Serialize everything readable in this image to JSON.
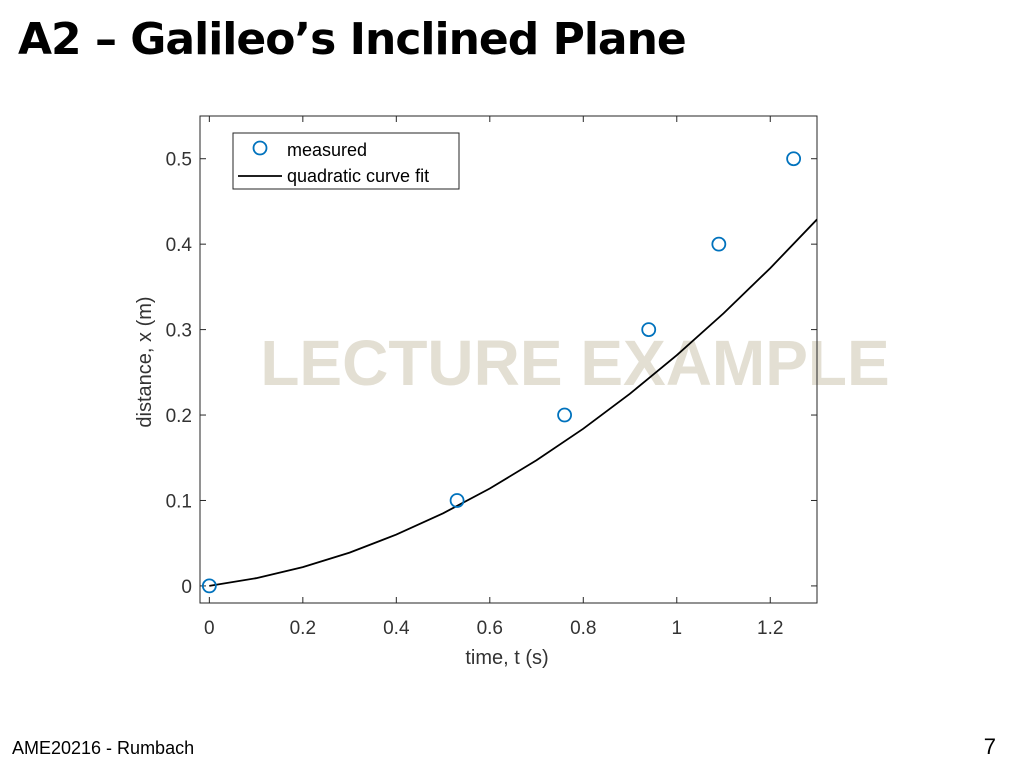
{
  "slide": {
    "title": "A2 – Galileo’s Inclined Plane",
    "footer": "AME20216 - Rumbach",
    "page_number": "7"
  },
  "watermark": "LECTURE EXAMPLE",
  "chart_data": {
    "type": "scatter",
    "xlabel": "time, t (s)",
    "ylabel": "distance, x (m)",
    "xlim": [
      -0.02,
      1.3
    ],
    "ylim": [
      -0.02,
      0.55
    ],
    "xticks": [
      0,
      0.2,
      0.4,
      0.6,
      0.8,
      1,
      1.2
    ],
    "xtick_labels": [
      "0",
      "0.2",
      "0.4",
      "0.6",
      "0.8",
      "1",
      "1.2"
    ],
    "yticks": [
      0,
      0.1,
      0.2,
      0.3,
      0.4,
      0.5
    ],
    "ytick_labels": [
      "0",
      "0.1",
      "0.2",
      "0.3",
      "0.4",
      "0.5"
    ],
    "grid": false,
    "legend_position": "top-left",
    "series": [
      {
        "name": "measured",
        "kind": "markers",
        "marker": "circle",
        "color": "#0072BD",
        "x": [
          0,
          0.53,
          0.76,
          0.94,
          1.09,
          1.25
        ],
        "y": [
          0,
          0.1,
          0.2,
          0.3,
          0.4,
          0.5
        ]
      },
      {
        "name": "quadratic curve fit",
        "kind": "line",
        "color": "#000000",
        "x": [
          0,
          0.1,
          0.2,
          0.3,
          0.4,
          0.5,
          0.6,
          0.7,
          0.8,
          0.9,
          1.0,
          1.1,
          1.2,
          1.3
        ],
        "y": [
          0.0,
          0.009,
          0.022,
          0.039,
          0.06,
          0.085,
          0.114,
          0.147,
          0.184,
          0.225,
          0.27,
          0.319,
          0.372,
          0.429
        ]
      }
    ]
  }
}
